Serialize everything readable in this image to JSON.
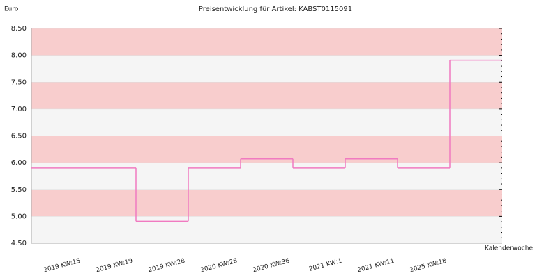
{
  "chart_data": {
    "type": "step",
    "title": "Preisentwicklung für Artikel: KABST0115091",
    "y_label": "Euro",
    "x_label": "Kalenderwoche",
    "categories": [
      "2019 KW:15",
      "2019 KW:19",
      "2019 KW:28",
      "2020 KW:26",
      "2020 KW:36",
      "2021 KW:1",
      "2021 KW:11",
      "2025 KW:18"
    ],
    "values": [
      5.9,
      4.91,
      5.9,
      6.07,
      5.9,
      6.07,
      5.9,
      7.91
    ],
    "color": "#f07ac0",
    "band_colors": [
      "#f8cdcd",
      "#f5f5f5"
    ],
    "ylim": [
      4.5,
      8.5
    ],
    "yticks": [
      {
        "value": 4.5,
        "label": "4.50"
      },
      {
        "value": 5,
        "label": "5.00"
      },
      {
        "value": 5.5,
        "label": "5.50"
      },
      {
        "value": 6,
        "label": "6.00"
      },
      {
        "value": 6.5,
        "label": "6.50"
      },
      {
        "value": 7,
        "label": "7.00"
      },
      {
        "value": 7.5,
        "label": "7.50"
      },
      {
        "value": 8,
        "label": "8.00"
      },
      {
        "value": 8.5,
        "label": "8.50"
      }
    ]
  }
}
